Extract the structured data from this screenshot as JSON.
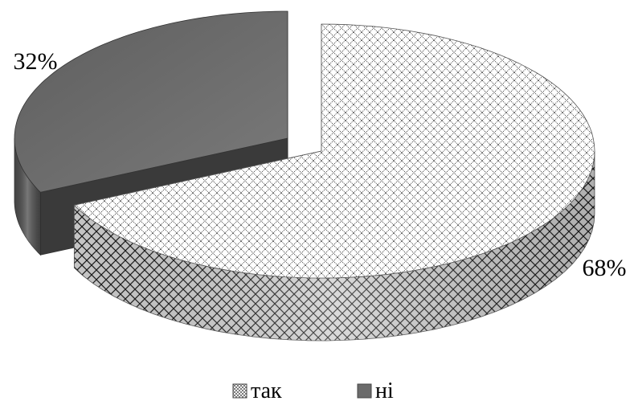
{
  "chart_data": {
    "type": "pie",
    "style": "3d-exploded",
    "slices": [
      {
        "label": "так",
        "value": 68,
        "value_label": "68%",
        "color": "#ffffff",
        "pattern": "crosshatch"
      },
      {
        "label": "ні",
        "value": 32,
        "value_label": "32%",
        "color": "#6b6b6b",
        "pattern": "solid"
      }
    ],
    "legend_position": "bottom"
  }
}
